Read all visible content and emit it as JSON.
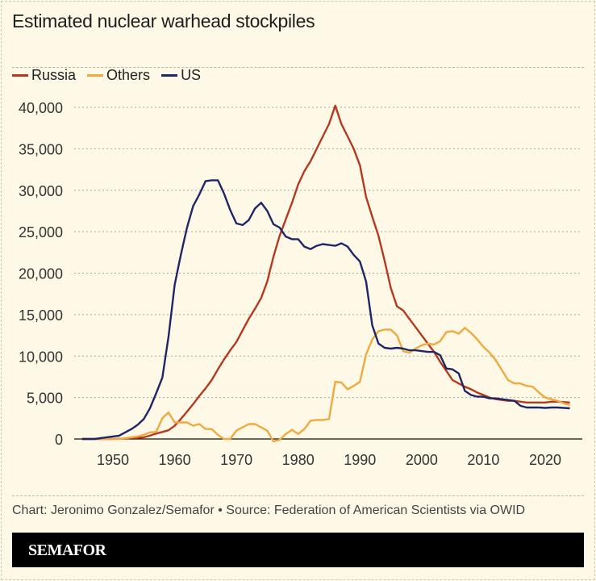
{
  "chart_data": {
    "type": "line",
    "title": "Estimated nuclear warhead stockpiles",
    "xlabel": "",
    "ylabel": "",
    "xlim": [
      1945,
      2024
    ],
    "ylim": [
      0,
      40000
    ],
    "x_ticks": [
      1950,
      1960,
      1970,
      1980,
      1990,
      2000,
      2010,
      2020
    ],
    "x_tick_labels": [
      "1950",
      "1960",
      "1970",
      "1980",
      "1990",
      "2000",
      "2010",
      "2020"
    ],
    "y_ticks": [
      0,
      5000,
      10000,
      15000,
      20000,
      25000,
      30000,
      35000,
      40000
    ],
    "y_tick_labels": [
      "0",
      "5,000",
      "10,000",
      "15,000",
      "20,000",
      "25,000",
      "30,000",
      "35,000",
      "40,000"
    ],
    "grid": "horizontal dotted",
    "legend_placement": "top-left",
    "x_start": 1945,
    "series": [
      {
        "name": "Russia",
        "color": "#b5391f",
        "values": [
          0,
          0,
          0,
          0,
          0,
          5,
          25,
          50,
          120,
          150,
          200,
          400,
          650,
          850,
          1050,
          1600,
          2400,
          3300,
          4200,
          5200,
          6100,
          7100,
          8400,
          9600,
          10700,
          11700,
          13100,
          14500,
          15700,
          17000,
          19000,
          22000,
          24500,
          26500,
          28500,
          30700,
          32300,
          33500,
          35000,
          36500,
          38000,
          40200,
          38000,
          36500,
          35000,
          33000,
          29200,
          26800,
          24500,
          21500,
          18200,
          16000,
          15500,
          14500,
          13500,
          12500,
          11500,
          10500,
          9300,
          8200,
          7100,
          6700,
          6300,
          6000,
          5600,
          5300,
          5000,
          4800,
          4700,
          4600,
          4600,
          4500,
          4400,
          4400,
          4400,
          4400,
          4500,
          4500,
          4450,
          4400
        ]
      },
      {
        "name": "Others",
        "color": "#f0a93e",
        "values": [
          0,
          0,
          0,
          0,
          0,
          0,
          0,
          100,
          200,
          300,
          500,
          800,
          850,
          2500,
          3200,
          2000,
          2000,
          2000,
          1600,
          1800,
          1200,
          1200,
          500,
          0,
          0,
          1000,
          1400,
          1800,
          1800,
          1400,
          1000,
          -300,
          -100,
          600,
          1100,
          600,
          1200,
          2200,
          2300,
          2300,
          2400,
          6900,
          6800,
          6000,
          6400,
          6900,
          10200,
          12000,
          13000,
          13200,
          13200,
          12500,
          10600,
          10400,
          10900,
          11300,
          11500,
          11400,
          11800,
          12900,
          13000,
          12700,
          13400,
          12800,
          12000,
          11100,
          10400,
          9500,
          8300,
          7100,
          6700,
          6700,
          6400,
          6300,
          5600,
          5000,
          4800,
          4600,
          4300,
          4100
        ]
      },
      {
        "name": "US",
        "color": "#1f2667",
        "values": [
          0,
          0,
          0,
          100,
          200,
          300,
          400,
          800,
          1200,
          1700,
          2400,
          3700,
          5500,
          7400,
          12300,
          18600,
          22200,
          25500,
          28100,
          29500,
          31100,
          31200,
          31200,
          29600,
          27600,
          26000,
          25800,
          26400,
          27800,
          28500,
          27500,
          25900,
          25500,
          24400,
          24100,
          24100,
          23200,
          22900,
          23300,
          23500,
          23400,
          23300,
          23600,
          23200,
          22200,
          21400,
          19000,
          13700,
          11500,
          11000,
          10900,
          11000,
          10900,
          10700,
          10700,
          10600,
          10500,
          10500,
          10100,
          8500,
          8400,
          7900,
          5800,
          5300,
          5100,
          5100,
          4900,
          4900,
          4800,
          4700,
          4600,
          4000,
          3800,
          3800,
          3800,
          3750,
          3800,
          3800,
          3750,
          3700
        ]
      }
    ]
  },
  "footer": {
    "credit": "Chart: Jeronimo Gonzalez/Semafor • Source: Federation of American Scientists via OWID",
    "logo": "SEMAFOR"
  }
}
